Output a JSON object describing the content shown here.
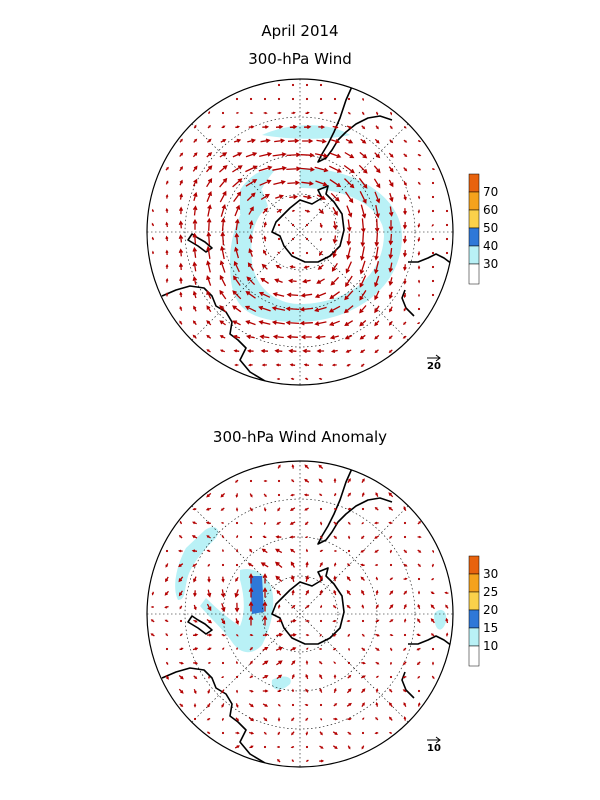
{
  "header": {
    "month": "April 2014",
    "top_title": "300-hPa Wind",
    "bottom_title": "300-hPa Wind Anomaly"
  },
  "colors": {
    "arrow": "#b30000",
    "coast": "#000000",
    "grid": "#000000",
    "shade_light": "#b9f1f6",
    "shade_medium": "#58b3ec",
    "shade_dark": "#2f78d8",
    "shade_yellow": "#fbd14a",
    "shade_orange": "#f5a21c",
    "shade_red": "#e8630e"
  },
  "top_map": {
    "colorbar": {
      "labels": [
        "70",
        "60",
        "50",
        "40",
        "30"
      ],
      "colors": [
        "#e8630e",
        "#f5a21c",
        "#fbd14a",
        "#2f78d8",
        "#b9f1f6",
        "#ffffff"
      ]
    },
    "reference_vector": {
      "label": "20",
      "value": 20
    }
  },
  "bottom_map": {
    "colorbar": {
      "labels": [
        "30",
        "25",
        "20",
        "15",
        "10"
      ],
      "colors": [
        "#e8630e",
        "#f5a21c",
        "#fbd14a",
        "#2f78d8",
        "#b9f1f6",
        "#ffffff"
      ]
    },
    "reference_vector": {
      "label": "10",
      "value": 10
    }
  }
}
